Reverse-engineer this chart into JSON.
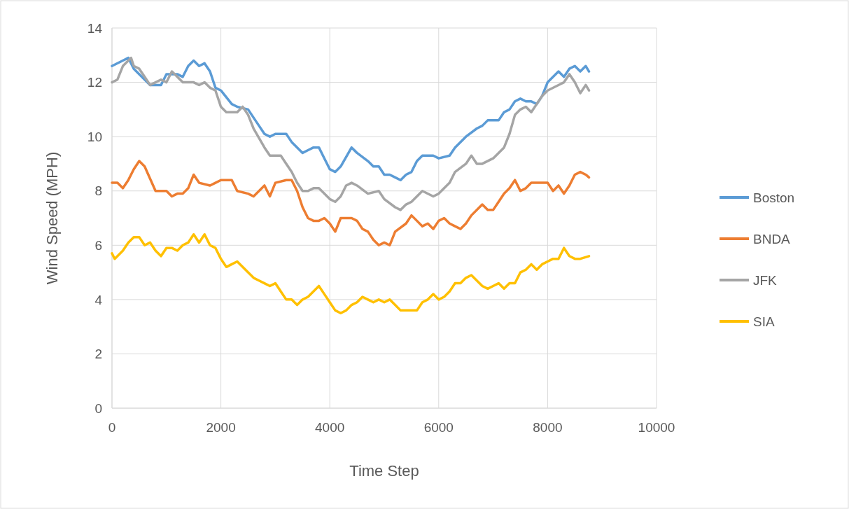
{
  "chart_data": {
    "type": "line",
    "xlabel": "Time Step",
    "ylabel": "Wind Speed (MPH)",
    "xlim": [
      0,
      10000
    ],
    "xticks": [
      0,
      2000,
      4000,
      6000,
      8000,
      10000
    ],
    "ylim": [
      0,
      14
    ],
    "yticks": [
      0,
      2,
      4,
      6,
      8,
      10,
      12,
      14
    ],
    "grid": true,
    "legend": "right",
    "marker": "none",
    "line_style": "solid",
    "series": [
      {
        "name": "Boston",
        "color": "#5b9bd5",
        "x": [
          0,
          200,
          300,
          400,
          600,
          700,
          900,
          1000,
          1200,
          1300,
          1400,
          1500,
          1600,
          1700,
          1800,
          1900,
          2000,
          2200,
          2300,
          2500,
          2700,
          2800,
          2900,
          3000,
          3200,
          3300,
          3500,
          3600,
          3700,
          3800,
          3900,
          4000,
          4100,
          4200,
          4400,
          4500,
          4700,
          4800,
          4900,
          5000,
          5100,
          5200,
          5300,
          5400,
          5500,
          5600,
          5700,
          5900,
          6000,
          6200,
          6300,
          6500,
          6700,
          6800,
          6900,
          7100,
          7200,
          7300,
          7400,
          7500,
          7600,
          7700,
          7800,
          7900,
          8000,
          8100,
          8200,
          8300,
          8400,
          8500,
          8600,
          8700,
          8760
        ],
        "values": [
          12.6,
          12.8,
          12.9,
          12.5,
          12.1,
          11.9,
          11.9,
          12.3,
          12.3,
          12.2,
          12.6,
          12.8,
          12.6,
          12.7,
          12.4,
          11.8,
          11.7,
          11.2,
          11.1,
          11.0,
          10.4,
          10.1,
          10.0,
          10.1,
          10.1,
          9.8,
          9.4,
          9.5,
          9.6,
          9.6,
          9.2,
          8.8,
          8.7,
          8.9,
          9.6,
          9.4,
          9.1,
          8.9,
          8.9,
          8.6,
          8.6,
          8.5,
          8.4,
          8.6,
          8.7,
          9.1,
          9.3,
          9.3,
          9.2,
          9.3,
          9.6,
          10.0,
          10.3,
          10.4,
          10.6,
          10.6,
          10.9,
          11.0,
          11.3,
          11.4,
          11.3,
          11.3,
          11.2,
          11.5,
          12.0,
          12.2,
          12.4,
          12.2,
          12.5,
          12.6,
          12.4,
          12.6,
          12.4
        ]
      },
      {
        "name": "BNDA",
        "color": "#ed7d31",
        "x": [
          0,
          100,
          200,
          300,
          400,
          500,
          600,
          800,
          1000,
          1100,
          1200,
          1300,
          1400,
          1500,
          1600,
          1800,
          1900,
          2000,
          2200,
          2300,
          2500,
          2600,
          2700,
          2800,
          2900,
          3000,
          3200,
          3300,
          3400,
          3500,
          3600,
          3700,
          3800,
          3900,
          4000,
          4100,
          4200,
          4400,
          4500,
          4600,
          4700,
          4800,
          4900,
          5000,
          5100,
          5200,
          5400,
          5500,
          5600,
          5700,
          5800,
          5900,
          6000,
          6100,
          6200,
          6300,
          6400,
          6500,
          6600,
          6800,
          6900,
          7000,
          7100,
          7200,
          7300,
          7400,
          7500,
          7600,
          7700,
          8000,
          8100,
          8200,
          8300,
          8400,
          8500,
          8600,
          8700,
          8760
        ],
        "values": [
          8.3,
          8.3,
          8.1,
          8.4,
          8.8,
          9.1,
          8.9,
          8.0,
          8.0,
          7.8,
          7.9,
          7.9,
          8.1,
          8.6,
          8.3,
          8.2,
          8.3,
          8.4,
          8.4,
          8.0,
          7.9,
          7.8,
          8.0,
          8.2,
          7.8,
          8.3,
          8.4,
          8.4,
          8.0,
          7.4,
          7.0,
          6.9,
          6.9,
          7.0,
          6.8,
          6.5,
          7.0,
          7.0,
          6.9,
          6.6,
          6.5,
          6.2,
          6.0,
          6.1,
          6.0,
          6.5,
          6.8,
          7.1,
          6.9,
          6.7,
          6.8,
          6.6,
          6.9,
          7.0,
          6.8,
          6.7,
          6.6,
          6.8,
          7.1,
          7.5,
          7.3,
          7.3,
          7.6,
          7.9,
          8.1,
          8.4,
          8.0,
          8.1,
          8.3,
          8.3,
          8.0,
          8.2,
          7.9,
          8.2,
          8.6,
          8.7,
          8.6,
          8.5
        ]
      },
      {
        "name": "JFK",
        "color": "#a5a5a5",
        "x": [
          0,
          100,
          200,
          300,
          350,
          400,
          500,
          600,
          700,
          800,
          900,
          1000,
          1100,
          1200,
          1300,
          1500,
          1600,
          1700,
          1800,
          1900,
          2000,
          2100,
          2300,
          2400,
          2500,
          2600,
          2800,
          2900,
          3100,
          3200,
          3300,
          3400,
          3500,
          3600,
          3700,
          3800,
          4000,
          4100,
          4200,
          4300,
          4400,
          4500,
          4700,
          4900,
          5000,
          5200,
          5300,
          5400,
          5500,
          5700,
          5900,
          6000,
          6200,
          6300,
          6500,
          6600,
          6700,
          6800,
          7000,
          7200,
          7300,
          7400,
          7500,
          7600,
          7700,
          7800,
          7900,
          8000,
          8200,
          8300,
          8400,
          8500,
          8600,
          8700,
          8760
        ],
        "values": [
          12.0,
          12.1,
          12.6,
          12.8,
          12.9,
          12.6,
          12.5,
          12.2,
          11.9,
          12.0,
          12.1,
          12.0,
          12.4,
          12.2,
          12.0,
          12.0,
          11.9,
          12.0,
          11.8,
          11.7,
          11.1,
          10.9,
          10.9,
          11.1,
          10.8,
          10.3,
          9.6,
          9.3,
          9.3,
          9.0,
          8.7,
          8.3,
          8.0,
          8.0,
          8.1,
          8.1,
          7.7,
          7.6,
          7.8,
          8.2,
          8.3,
          8.2,
          7.9,
          8.0,
          7.7,
          7.4,
          7.3,
          7.5,
          7.6,
          8.0,
          7.8,
          7.9,
          8.3,
          8.7,
          9.0,
          9.3,
          9.0,
          9.0,
          9.2,
          9.6,
          10.1,
          10.8,
          11.0,
          11.1,
          10.9,
          11.2,
          11.5,
          11.7,
          11.9,
          12.0,
          12.3,
          12.0,
          11.6,
          11.9,
          11.7
        ]
      },
      {
        "name": "SIA",
        "color": "#ffc000",
        "x": [
          0,
          50,
          200,
          300,
          400,
          500,
          600,
          700,
          800,
          900,
          1000,
          1100,
          1200,
          1300,
          1400,
          1500,
          1600,
          1700,
          1800,
          1900,
          2000,
          2100,
          2200,
          2300,
          2400,
          2500,
          2600,
          2700,
          2800,
          2900,
          3000,
          3100,
          3200,
          3300,
          3400,
          3500,
          3600,
          3700,
          3800,
          3900,
          4000,
          4100,
          4200,
          4300,
          4400,
          4500,
          4600,
          4700,
          4800,
          4900,
          5000,
          5100,
          5200,
          5300,
          5400,
          5600,
          5700,
          5800,
          5900,
          6000,
          6100,
          6200,
          6300,
          6400,
          6500,
          6600,
          6700,
          6800,
          6900,
          7000,
          7100,
          7200,
          7300,
          7400,
          7500,
          7600,
          7700,
          7800,
          7900,
          8000,
          8100,
          8200,
          8300,
          8400,
          8500,
          8600,
          8760
        ],
        "values": [
          5.7,
          5.5,
          5.8,
          6.1,
          6.3,
          6.3,
          6.0,
          6.1,
          5.8,
          5.6,
          5.9,
          5.9,
          5.8,
          6.0,
          6.1,
          6.4,
          6.1,
          6.4,
          6.0,
          5.9,
          5.5,
          5.2,
          5.3,
          5.4,
          5.2,
          5.0,
          4.8,
          4.7,
          4.6,
          4.5,
          4.6,
          4.3,
          4.0,
          4.0,
          3.8,
          4.0,
          4.1,
          4.3,
          4.5,
          4.2,
          3.9,
          3.6,
          3.5,
          3.6,
          3.8,
          3.9,
          4.1,
          4.0,
          3.9,
          4.0,
          3.9,
          4.0,
          3.8,
          3.6,
          3.6,
          3.6,
          3.9,
          4.0,
          4.2,
          4.0,
          4.1,
          4.3,
          4.6,
          4.6,
          4.8,
          4.9,
          4.7,
          4.5,
          4.4,
          4.5,
          4.6,
          4.4,
          4.6,
          4.6,
          5.0,
          5.1,
          5.3,
          5.1,
          5.3,
          5.4,
          5.5,
          5.5,
          5.9,
          5.6,
          5.5,
          5.5,
          5.6
        ]
      }
    ]
  }
}
